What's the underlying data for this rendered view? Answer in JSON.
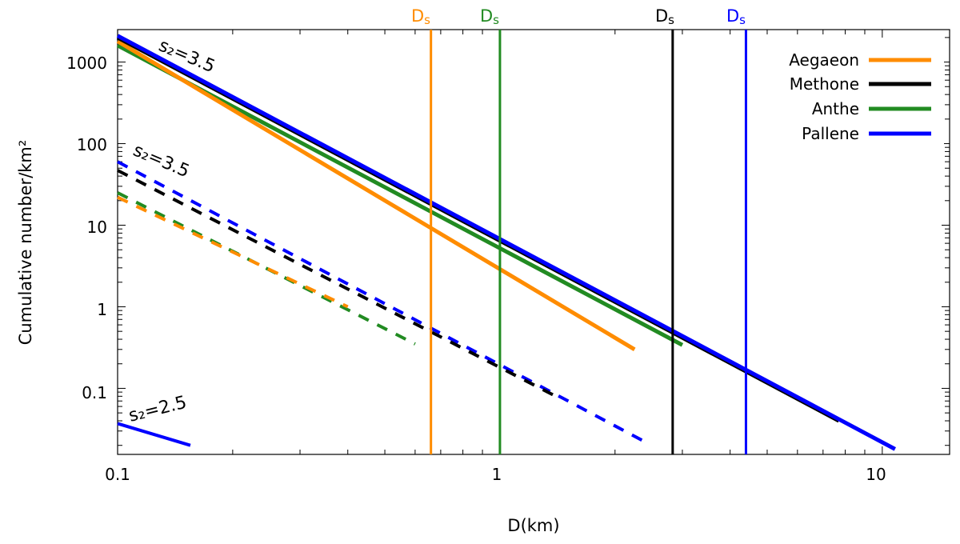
{
  "chart_data": {
    "type": "line",
    "xlabel": "D(km)",
    "ylabel": "Cumulative number/km²",
    "xscale": "log",
    "yscale": "log",
    "xlim": [
      0.1,
      15
    ],
    "ylim": [
      0.0155,
      2500
    ],
    "grid": false,
    "legend_position": "top-right",
    "x_ticks": [
      {
        "value": 0.1,
        "label": "0.1"
      },
      {
        "value": 1,
        "label": "1"
      },
      {
        "value": 10,
        "label": "10"
      }
    ],
    "y_ticks": [
      {
        "value": 0.1,
        "label": "0.1"
      },
      {
        "value": 1,
        "label": "1"
      },
      {
        "value": 10,
        "label": "10"
      },
      {
        "value": 100,
        "label": "100"
      },
      {
        "value": 1000,
        "label": "1000"
      }
    ],
    "series": [
      {
        "name": "Aegaeon",
        "color": "#ff8c00",
        "style": "solid",
        "x": [
          0.1,
          2.25
        ],
        "y": [
          1800,
          0.3
        ]
      },
      {
        "name": "Methone",
        "color": "#000000",
        "style": "solid",
        "x": [
          0.1,
          7.7
        ],
        "y": [
          2000,
          0.04
        ]
      },
      {
        "name": "Anthe",
        "color": "#228b22",
        "style": "solid",
        "x": [
          0.1,
          3.0
        ],
        "y": [
          1600,
          0.34
        ]
      },
      {
        "name": "Pallene",
        "color": "#0000ff",
        "style": "solid",
        "x": [
          0.1,
          10.8
        ],
        "y": [
          2100,
          0.018
        ]
      }
    ],
    "dashed_series": [
      {
        "color": "#0000ff",
        "x": [
          0.1,
          2.4
        ],
        "y": [
          60,
          0.022
        ]
      },
      {
        "color": "#000000",
        "x": [
          0.1,
          1.4
        ],
        "y": [
          47,
          0.08
        ]
      },
      {
        "color": "#228b22",
        "x": [
          0.1,
          0.6
        ],
        "y": [
          25,
          0.35
        ]
      },
      {
        "color": "#ff8c00",
        "x": [
          0.1,
          0.4
        ],
        "y": [
          22,
          1.0
        ]
      }
    ],
    "reference_line": {
      "color": "#0000ff",
      "x": [
        0.1,
        0.155
      ],
      "y": [
        0.037,
        0.02
      ]
    },
    "annotations": {
      "slope_upper": "s₂=3.5",
      "slope_middle": "s₂=3.5",
      "slope_lower": "s₂=2.5"
    },
    "ds_markers": [
      {
        "x": 0.66,
        "color": "#ff8c00",
        "label": "Ds"
      },
      {
        "x": 1.0,
        "color": "#228b22",
        "label": "Ds"
      },
      {
        "x": 2.83,
        "color": "#000000",
        "label": "Ds"
      },
      {
        "x": 4.4,
        "color": "#0000ff",
        "label": "Ds"
      }
    ]
  }
}
